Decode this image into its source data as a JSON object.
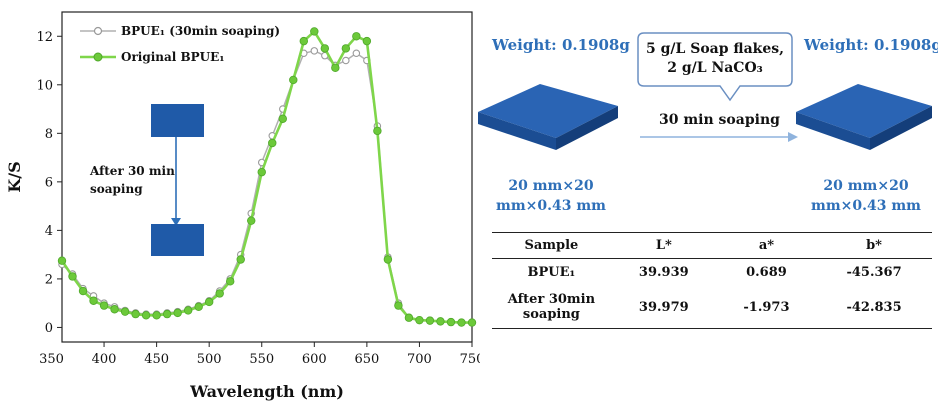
{
  "chart_data": {
    "type": "line",
    "xlabel": "Wavelength (nm)",
    "ylabel": "K/S",
    "xlim": [
      360,
      750
    ],
    "ylim": [
      -0.6,
      13
    ],
    "xticks": [
      350,
      400,
      450,
      500,
      550,
      600,
      650,
      700,
      750
    ],
    "yticks": [
      0,
      2,
      4,
      6,
      8,
      10,
      12
    ],
    "legend_position": "top-left",
    "grid": false,
    "series": [
      {
        "name": "BPUE₁ (30min soaping)",
        "color": "#b0b0b0",
        "marker": "open-circle",
        "x": [
          360,
          370,
          380,
          390,
          400,
          410,
          420,
          430,
          440,
          450,
          460,
          470,
          480,
          490,
          500,
          510,
          520,
          530,
          540,
          550,
          560,
          570,
          580,
          590,
          600,
          610,
          620,
          630,
          640,
          650,
          660,
          670,
          680,
          690,
          700,
          710,
          720,
          730,
          740,
          750
        ],
        "y": [
          2.6,
          2.2,
          1.6,
          1.3,
          1.0,
          0.85,
          0.7,
          0.6,
          0.55,
          0.55,
          0.6,
          0.65,
          0.75,
          0.9,
          1.1,
          1.5,
          2.0,
          3.0,
          4.7,
          6.8,
          7.9,
          9.0,
          10.2,
          11.3,
          11.4,
          11.2,
          10.8,
          11.0,
          11.3,
          11.0,
          8.3,
          2.9,
          1.0,
          0.4,
          0.3,
          0.3,
          0.25,
          0.22,
          0.2,
          0.2
        ]
      },
      {
        "name": "Original BPUE₁",
        "color": "#7fd64a",
        "marker": "filled-circle",
        "x": [
          360,
          370,
          380,
          390,
          400,
          410,
          420,
          430,
          440,
          450,
          460,
          470,
          480,
          490,
          500,
          510,
          520,
          530,
          540,
          550,
          560,
          570,
          580,
          590,
          600,
          610,
          620,
          630,
          640,
          650,
          660,
          670,
          680,
          690,
          700,
          710,
          720,
          730,
          740,
          750
        ],
        "y": [
          2.75,
          2.1,
          1.5,
          1.1,
          0.9,
          0.75,
          0.65,
          0.55,
          0.5,
          0.5,
          0.55,
          0.6,
          0.7,
          0.85,
          1.05,
          1.4,
          1.9,
          2.8,
          4.4,
          6.4,
          7.6,
          8.6,
          10.2,
          11.8,
          12.2,
          11.5,
          10.7,
          11.5,
          12.0,
          11.8,
          8.1,
          2.8,
          0.9,
          0.4,
          0.3,
          0.28,
          0.25,
          0.22,
          0.2,
          0.2
        ]
      }
    ],
    "inset_text": [
      "After 30 min",
      "soaping"
    ]
  },
  "legend": {
    "item1_text": "BPUE₁ (30min soaping)",
    "item2_text": "Original BPUE₁"
  },
  "scheme": {
    "weight_left": "Weight: 0.1908g",
    "weight_right": "Weight: 0.1908g",
    "callout_line1": "5 g/L Soap flakes,",
    "callout_line2": "2 g/L NaCO₃",
    "step_label": "30 min soaping",
    "dims_left_line1": "20 mm×20",
    "dims_left_line2": "mm×0.43 mm",
    "dims_right_line1": "20 mm×20",
    "dims_right_line2": "mm×0.43 mm",
    "swatch_color": "#1f5aa8"
  },
  "table": {
    "headers": [
      "Sample",
      "L*",
      "a*",
      "b*"
    ],
    "rows": [
      {
        "sample": "BPUE₁",
        "L": "39.939",
        "a": "0.689",
        "b": "-45.367"
      },
      {
        "sample_line1": "After 30min",
        "sample_line2": "soaping",
        "L": "39.979",
        "a": "-1.973",
        "b": "-42.835"
      }
    ]
  }
}
